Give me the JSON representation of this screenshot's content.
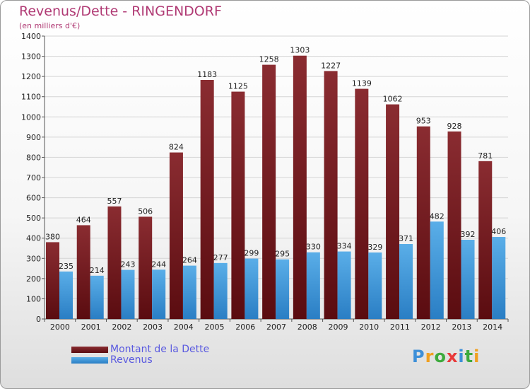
{
  "chart_data": {
    "type": "bar",
    "title": "Revenus/Dette - RINGENDORF",
    "subtitle": "(en milliers d'€)",
    "categories": [
      "2000",
      "2001",
      "2002",
      "2003",
      "2004",
      "2005",
      "2006",
      "2007",
      "2008",
      "2009",
      "2010",
      "2011",
      "2012",
      "2013",
      "2014"
    ],
    "series": [
      {
        "name": "Montant de la Dette",
        "color": "#7a1e22",
        "values": [
          380,
          464,
          557,
          506,
          824,
          1183,
          1125,
          1258,
          1303,
          1227,
          1139,
          1062,
          953,
          928,
          781
        ]
      },
      {
        "name": "Revenus",
        "color": "#3d97dc",
        "values": [
          235,
          214,
          243,
          244,
          264,
          277,
          299,
          295,
          330,
          334,
          329,
          371,
          482,
          392,
          406
        ]
      }
    ],
    "ylim": [
      0,
      1400
    ],
    "yticks": [
      0,
      100,
      200,
      300,
      400,
      500,
      600,
      700,
      800,
      900,
      1000,
      1100,
      1200,
      1300,
      1400
    ],
    "grid": true,
    "legend_position": "bottom-left"
  },
  "logo": {
    "text": "Proxiti",
    "letters": [
      "P",
      "r",
      "o",
      "x",
      "i",
      "t",
      "i"
    ],
    "colors": [
      "#3d8fd8",
      "#f0a020",
      "#3daa3d",
      "#e83a3a",
      "#3d8fd8",
      "#3daa3d",
      "#f0a020"
    ]
  }
}
